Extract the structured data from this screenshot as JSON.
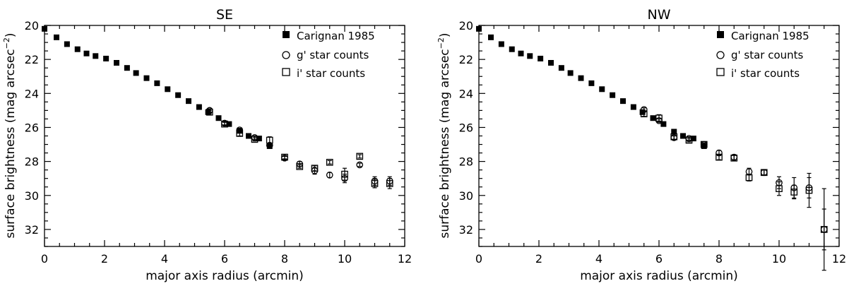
{
  "chart_data": [
    {
      "type": "scatter",
      "title": "SE",
      "xlabel": "major axis radius (arcmin)",
      "ylabel_main": "surface brightness (mag arcsec",
      "ylabel_exp": "−2",
      "ylabel_close": ")",
      "xlim": [
        0,
        12
      ],
      "ylim": [
        33,
        20
      ],
      "xticks": [
        0,
        2,
        4,
        6,
        8,
        10,
        12
      ],
      "yticks": [
        20,
        22,
        24,
        26,
        28,
        30,
        32
      ],
      "grid": false,
      "legend_position": "top-right",
      "series": [
        {
          "name": "Carignan 1985",
          "marker": "filled-square",
          "x": [
            0.0,
            0.4,
            0.75,
            1.1,
            1.4,
            1.7,
            2.05,
            2.4,
            2.75,
            3.05,
            3.4,
            3.75,
            4.1,
            4.45,
            4.8,
            5.15,
            5.45,
            5.8,
            6.15,
            6.5,
            6.8,
            7.15,
            7.5
          ],
          "y": [
            20.2,
            20.7,
            21.1,
            21.4,
            21.65,
            21.8,
            21.95,
            22.2,
            22.5,
            22.8,
            23.1,
            23.4,
            23.75,
            24.1,
            24.45,
            24.8,
            25.1,
            25.45,
            25.8,
            26.2,
            26.5,
            26.65,
            27.1
          ]
        },
        {
          "name": "g' star counts",
          "marker": "open-circle",
          "x": [
            5.5,
            6.0,
            6.5,
            7.0,
            7.5,
            8.0,
            8.5,
            9.0,
            9.5,
            10.0,
            10.5,
            11.0,
            11.5
          ],
          "y": [
            25.0,
            25.75,
            26.15,
            26.6,
            27.05,
            27.8,
            28.15,
            28.55,
            28.8,
            29.0,
            28.2,
            29.15,
            29.15
          ],
          "err": [
            0.1,
            0.1,
            0.1,
            0.1,
            0.1,
            0.1,
            0.15,
            0.2,
            0.15,
            0.25,
            0.1,
            0.25,
            0.25
          ]
        },
        {
          "name": "i' star counts",
          "marker": "open-square",
          "x": [
            5.5,
            6.0,
            6.5,
            7.0,
            7.5,
            8.0,
            8.5,
            9.0,
            9.5,
            10.0,
            10.5,
            11.0,
            11.5
          ],
          "y": [
            25.1,
            25.8,
            26.35,
            26.7,
            26.75,
            27.75,
            28.3,
            28.4,
            28.05,
            28.75,
            27.7,
            29.3,
            29.3
          ],
          "err": [
            0.1,
            0.1,
            0.15,
            0.1,
            0.2,
            0.1,
            0.1,
            0.15,
            0.1,
            0.35,
            0.1,
            0.25,
            0.3
          ]
        }
      ]
    },
    {
      "type": "scatter",
      "title": "NW",
      "xlabel": "major axis radius (arcmin)",
      "ylabel_main": "surface brightness (mag arcsec",
      "ylabel_exp": "−2",
      "ylabel_close": ")",
      "xlim": [
        0,
        12
      ],
      "ylim": [
        33,
        20
      ],
      "xticks": [
        0,
        2,
        4,
        6,
        8,
        10,
        12
      ],
      "yticks": [
        20,
        22,
        24,
        26,
        28,
        30,
        32
      ],
      "grid": false,
      "legend_position": "top-right",
      "series": [
        {
          "name": "Carignan 1985",
          "marker": "filled-square",
          "x": [
            0.0,
            0.4,
            0.75,
            1.1,
            1.4,
            1.7,
            2.05,
            2.4,
            2.75,
            3.05,
            3.4,
            3.75,
            4.1,
            4.45,
            4.8,
            5.15,
            5.45,
            5.8,
            6.15,
            6.5,
            6.8,
            7.15,
            7.5
          ],
          "y": [
            20.2,
            20.7,
            21.1,
            21.4,
            21.65,
            21.8,
            21.95,
            22.2,
            22.5,
            22.8,
            23.1,
            23.4,
            23.75,
            24.1,
            24.45,
            24.8,
            25.1,
            25.45,
            25.8,
            26.25,
            26.5,
            26.65,
            27.1
          ]
        },
        {
          "name": "g' star counts",
          "marker": "open-circle",
          "x": [
            5.5,
            6.0,
            6.5,
            7.0,
            7.5,
            8.0,
            8.5,
            9.0,
            9.5,
            10.0,
            10.5,
            11.0,
            11.5
          ],
          "y": [
            24.95,
            25.6,
            26.6,
            26.65,
            27.0,
            27.5,
            27.75,
            28.6,
            28.65,
            29.25,
            29.55,
            29.55,
            32.0
          ],
          "err": [
            0.1,
            0.1,
            0.1,
            0.1,
            0.1,
            0.15,
            0.15,
            0.2,
            0.15,
            0.35,
            0.6,
            0.6,
            1.2
          ]
        },
        {
          "name": "i' star counts",
          "marker": "open-square",
          "x": [
            5.5,
            6.0,
            6.5,
            7.0,
            7.5,
            8.0,
            8.5,
            9.0,
            9.5,
            10.0,
            10.5,
            11.0,
            11.5
          ],
          "y": [
            25.2,
            25.45,
            26.55,
            26.75,
            27.0,
            27.75,
            27.8,
            28.95,
            28.65,
            29.6,
            29.8,
            29.7,
            32.0
          ],
          "err": [
            0.15,
            0.2,
            0.15,
            0.1,
            0.1,
            0.15,
            0.15,
            0.2,
            0.15,
            0.4,
            0.4,
            1.0,
            2.4
          ]
        }
      ]
    }
  ]
}
